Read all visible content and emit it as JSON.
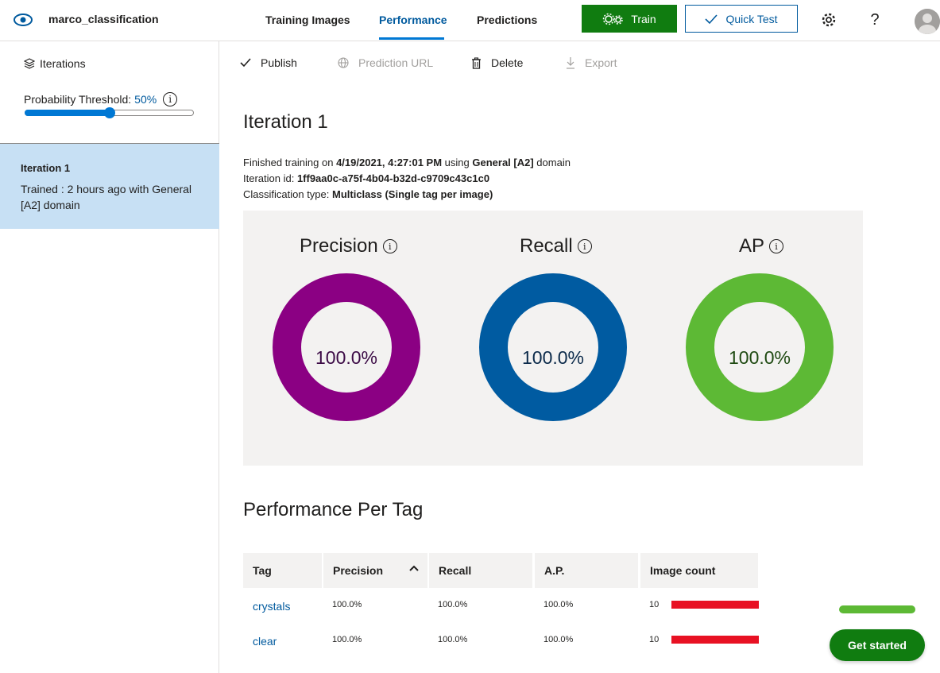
{
  "header": {
    "project_name": "marco_classification",
    "tabs": [
      {
        "label": "Training Images",
        "active": false
      },
      {
        "label": "Performance",
        "active": true
      },
      {
        "label": "Predictions",
        "active": false
      }
    ],
    "train_label": "Train",
    "quick_test_label": "Quick Test",
    "help_label": "?",
    "icons": [
      "eye-logo-icon",
      "gears-icon",
      "check-icon",
      "settings-gear-icon",
      "user-avatar"
    ]
  },
  "sidebar": {
    "heading": "Iterations",
    "threshold_label": "Probability Threshold:",
    "threshold_value": "50%",
    "threshold_fraction": 0.5,
    "iterations": [
      {
        "title": "Iteration 1",
        "subtitle": "Trained : 2 hours ago with General [A2] domain",
        "selected": true
      }
    ]
  },
  "toolbar": {
    "publish": "Publish",
    "prediction_url": "Prediction URL",
    "delete": "Delete",
    "export": "Export"
  },
  "iteration": {
    "title": "Iteration 1",
    "finished_prefix": "Finished training on ",
    "finished_date": "4/19/2021, 4:27:01 PM",
    "finished_mid": " using ",
    "domain": "General [A2]",
    "finished_suffix": " domain",
    "id_label": "Iteration id: ",
    "id_value": "1ff9aa0c-a75f-4b04-b32d-c9709c43c1c0",
    "type_label": "Classification type: ",
    "type_value": "Multiclass (Single tag per image)"
  },
  "metrics": [
    {
      "label": "Precision",
      "value": "100.0%",
      "fraction": 1.0,
      "color": "#8b0083",
      "text_color": "#3b0a45"
    },
    {
      "label": "Recall",
      "value": "100.0%",
      "fraction": 1.0,
      "color": "#005ba1",
      "text_color": "#0b2a4a"
    },
    {
      "label": "AP",
      "value": "100.0%",
      "fraction": 1.0,
      "color": "#5db935",
      "text_color": "#1f4a12"
    }
  ],
  "per_tag": {
    "title": "Performance Per Tag",
    "columns": [
      "Tag",
      "Precision",
      "Recall",
      "A.P.",
      "Image count"
    ],
    "sort_indicator": "^",
    "rows": [
      {
        "tag": "crystals",
        "precision": "100.0%",
        "recall": "100.0%",
        "ap": "100.0%",
        "image_count": "10",
        "count_fraction": 1.0
      },
      {
        "tag": "clear",
        "precision": "100.0%",
        "recall": "100.0%",
        "ap": "100.0%",
        "image_count": "10",
        "count_fraction": 1.0
      }
    ]
  },
  "footer": {
    "get_started_label": "Get started"
  },
  "colors": {
    "accent": "#0078d4",
    "train_green": "#107c10",
    "count_bar": "#e81123"
  }
}
